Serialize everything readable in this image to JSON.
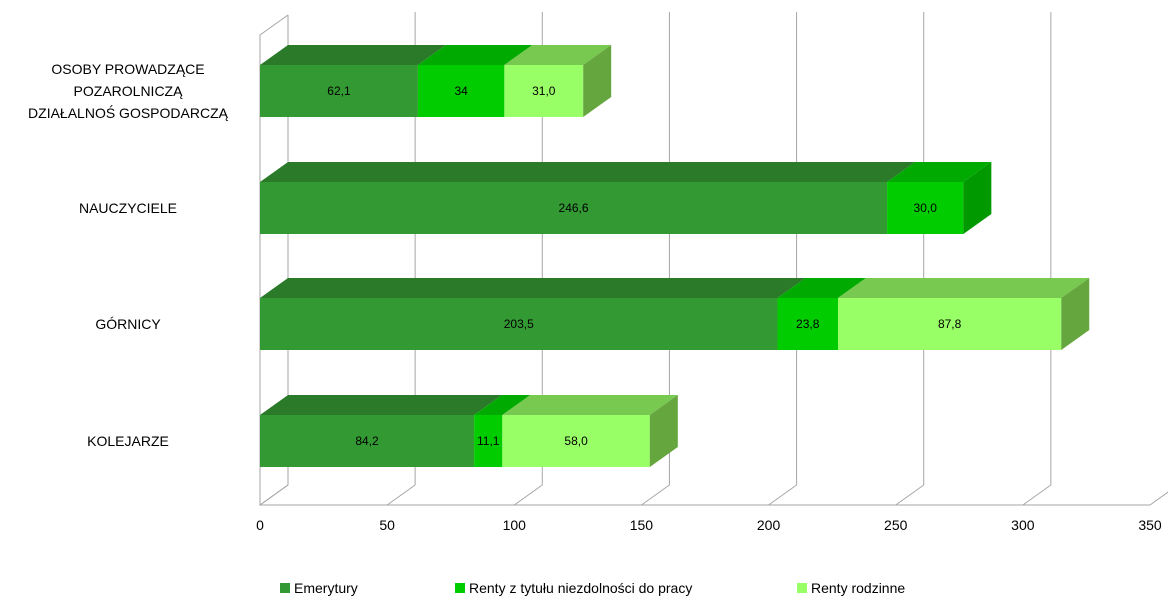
{
  "chart_data": {
    "type": "bar",
    "orientation": "horizontal",
    "stacked": true,
    "three_d": true,
    "categories": [
      [
        "OSOBY PROWADZĄCE",
        "POZAROLNICZĄ",
        "DZIAŁALNOŚ GOSPODARCZĄ"
      ],
      [
        "NAUCZYCIELE"
      ],
      [
        "GÓRNICY"
      ],
      [
        "KOLEJARZE"
      ]
    ],
    "series": [
      {
        "name": "Emerytury",
        "color": "#339933",
        "top_color": "#2a7a2a",
        "side_color": "#267326",
        "values": [
          62.1,
          246.6,
          203.5,
          84.2
        ],
        "labels": [
          "62,1",
          "246,6",
          "203,5",
          "84,2"
        ]
      },
      {
        "name": "Renty z tytułu niezdolności do pracy",
        "color": "#00cc00",
        "top_color": "#00aa00",
        "side_color": "#009900",
        "values": [
          34,
          30.0,
          23.8,
          11.1
        ],
        "labels": [
          "34",
          "30,0",
          "23,8",
          "11,1"
        ]
      },
      {
        "name": "Renty rodzinne",
        "color": "#99ff66",
        "top_color": "#77c950",
        "side_color": "#66a63e",
        "values": [
          31.0,
          0,
          87.8,
          58.0
        ],
        "labels": [
          "31,0",
          "",
          "87,8",
          "58,0"
        ]
      }
    ],
    "xlim": [
      0,
      350
    ],
    "xticks": [
      0,
      50,
      100,
      150,
      200,
      250,
      300,
      350
    ],
    "xtick_labels": [
      "0",
      "50",
      "100",
      "150",
      "200",
      "250",
      "300",
      "350"
    ],
    "grid": true,
    "legend_position": "bottom"
  }
}
